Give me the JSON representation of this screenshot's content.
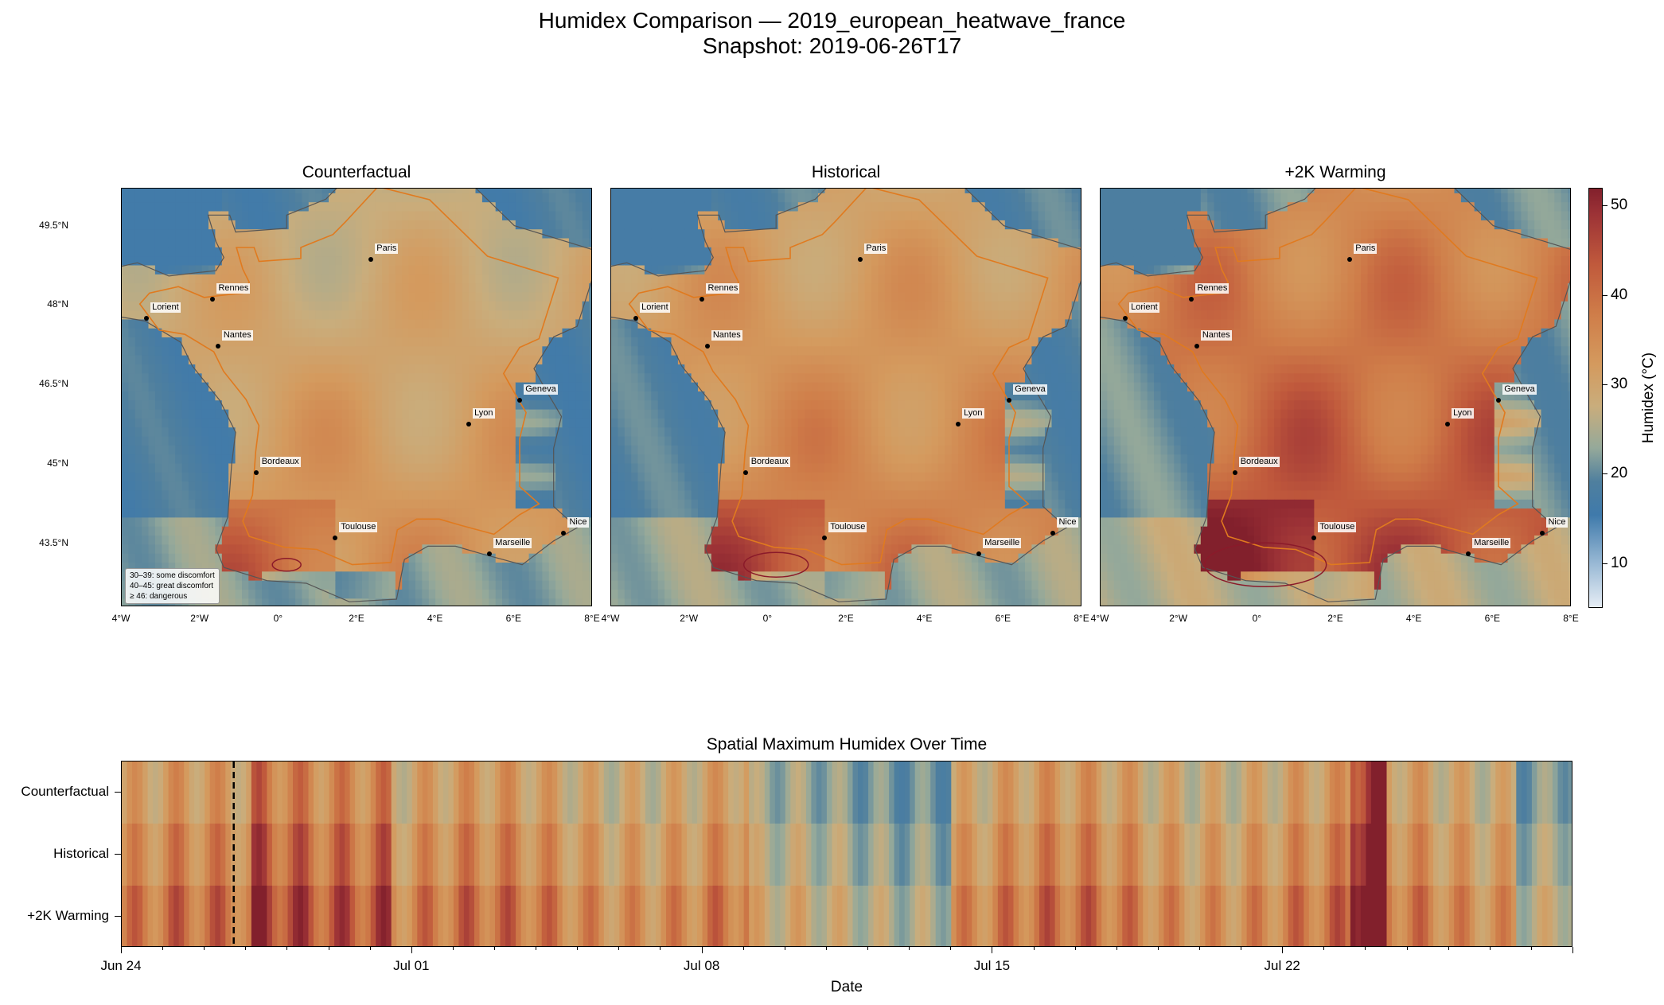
{
  "figure": {
    "title_line1": "Humidex Comparison — 2019_european_heatwave_france",
    "title_line2": "Snapshot: 2019-06-26T17"
  },
  "panels": [
    {
      "title": "Counterfactual",
      "scenario": "counterfactual"
    },
    {
      "title": "Historical",
      "scenario": "historical"
    },
    {
      "title": "+2K Warming",
      "scenario": "plus2k"
    }
  ],
  "axes": {
    "lon_labels": [
      "4°W",
      "2°W",
      "0°",
      "2°E",
      "4°E",
      "6°E",
      "8°E"
    ],
    "lon_values": [
      -4,
      -2,
      0,
      2,
      4,
      6,
      8
    ],
    "lat_labels": [
      "49.5°N",
      "48°N",
      "46.5°N",
      "45°N",
      "43.5°N"
    ],
    "lat_values": [
      49.5,
      48,
      46.5,
      45,
      43.5
    ]
  },
  "cities": [
    {
      "name": "Paris",
      "lon": 2.35,
      "lat": 48.86
    },
    {
      "name": "Rennes",
      "lon": -1.68,
      "lat": 48.11
    },
    {
      "name": "Lorient",
      "lon": -3.37,
      "lat": 47.75
    },
    {
      "name": "Nantes",
      "lon": -1.55,
      "lat": 47.22
    },
    {
      "name": "Geneva",
      "lon": 6.14,
      "lat": 46.2
    },
    {
      "name": "Lyon",
      "lon": 4.84,
      "lat": 45.76
    },
    {
      "name": "Bordeaux",
      "lon": -0.58,
      "lat": 44.84
    },
    {
      "name": "Toulouse",
      "lon": 1.44,
      "lat": 43.6
    },
    {
      "name": "Marseille",
      "lon": 5.37,
      "lat": 43.3
    },
    {
      "name": "Nice",
      "lon": 7.26,
      "lat": 43.7
    }
  ],
  "legend": {
    "line1": "30–39: some discomfort",
    "line2": "40–45: great discomfort",
    "line3": "≥ 46: dangerous"
  },
  "colorbar": {
    "label": "Humidex (°C)",
    "ticks": [
      "10",
      "20",
      "30",
      "40",
      "50"
    ],
    "tick_values": [
      10,
      20,
      30,
      40,
      50
    ],
    "min": 5,
    "max": 52,
    "colors": [
      "#e6edf5",
      "#3f7aab",
      "#95a99a",
      "#d49a5e",
      "#c0593c",
      "#82202c"
    ]
  },
  "timeseries": {
    "title": "Spatial Maximum Humidex Over Time",
    "rows": [
      "Counterfactual",
      "Historical",
      "+2K Warming"
    ],
    "x_labels": [
      "Jun 24",
      "Jul 01",
      "Jul 08",
      "Jul 15",
      "Jul 22"
    ],
    "x_days": [
      0,
      7,
      14,
      21,
      28
    ],
    "total_days": 35,
    "snapshot_day": 2.7,
    "xlabel": "Date"
  }
}
